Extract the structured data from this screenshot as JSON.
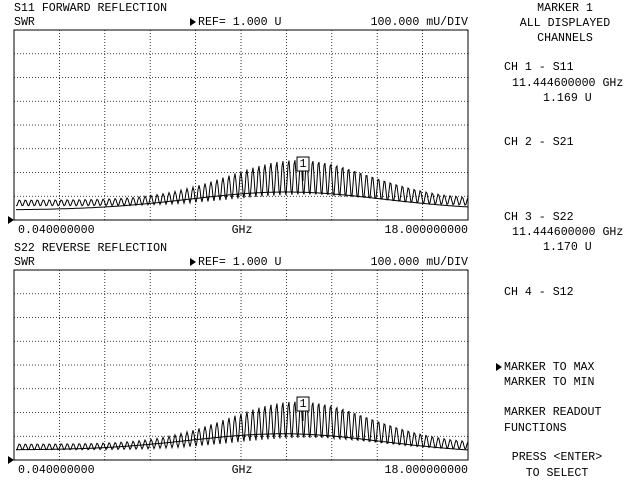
{
  "plots": [
    {
      "title": "S11 FORWARD REFLECTION",
      "format": "SWR",
      "ref": "REF= 1.000 U",
      "scale": "100.000 mU/DIV",
      "start": "0.040000000",
      "unit": "GHz",
      "stop": "18.000000000",
      "marker": "1"
    },
    {
      "title": "S22 REVERSE REFLECTION",
      "format": "SWR",
      "ref": "REF= 1.000 U",
      "scale": "100.000 mU/DIV",
      "start": "0.040000000",
      "unit": "GHz",
      "stop": "18.000000000",
      "marker": "1"
    }
  ],
  "menu": {
    "heading": [
      "MARKER 1",
      "ALL DISPLAYED",
      "CHANNELS"
    ],
    "channels": [
      {
        "label": "CH 1 - S11",
        "frequency": "11.444600000 GHz",
        "value": "1.169 U"
      },
      {
        "label": "CH 2 - S21"
      },
      {
        "label": "CH 3 - S22",
        "frequency": "11.444600000 GHz",
        "value": "1.170 U"
      },
      {
        "label": "CH 4 - S12"
      }
    ],
    "options": [
      "MARKER TO MAX",
      "MARKER TO MIN"
    ],
    "functions": [
      "MARKER READOUT",
      "FUNCTIONS"
    ],
    "prompt": [
      "PRESS <ENTER>",
      "TO SELECT"
    ]
  }
}
